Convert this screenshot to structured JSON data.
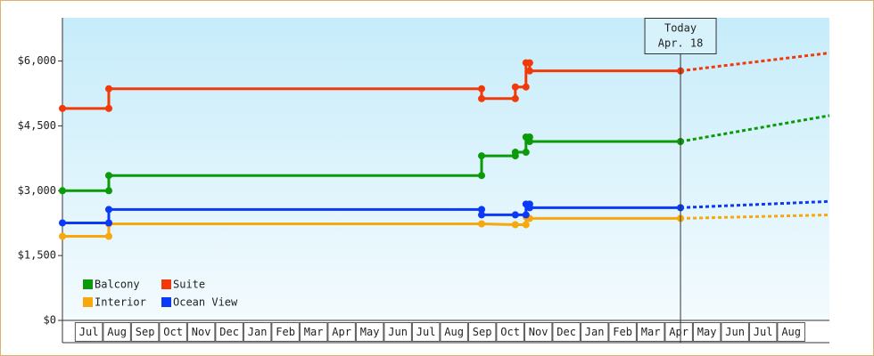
{
  "chart_data": {
    "type": "line",
    "step": true,
    "categories": [
      "Jul",
      "Aug",
      "Sep",
      "Oct",
      "Nov",
      "Dec",
      "Jan",
      "Feb",
      "Mar",
      "Apr",
      "May",
      "Jun",
      "Jul",
      "Aug",
      "Sep",
      "Oct",
      "Nov",
      "Dec",
      "Jan",
      "Feb",
      "Mar",
      "Apr",
      "May",
      "Jun",
      "Jul",
      "Aug"
    ],
    "xlim": [
      -0.44,
      26.86
    ],
    "ylim": [
      0,
      7000
    ],
    "yticks": [
      {
        "value": 0,
        "label": "$0"
      },
      {
        "value": 1500,
        "label": "$1,500"
      },
      {
        "value": 3000,
        "label": "$3,000"
      },
      {
        "value": 4500,
        "label": "$4,500"
      },
      {
        "value": 6000,
        "label": "$6,000"
      }
    ],
    "legend": "bottom-left",
    "annotation": {
      "x": 21.56,
      "label": [
        "Today",
        "Apr. 18"
      ]
    },
    "series": [
      {
        "name": "Balcony",
        "color": "#0a9a0a",
        "x": [
          -0.44,
          1.21,
          1.21,
          14.48,
          14.48,
          15.68,
          15.68,
          16.06,
          16.06,
          16.19,
          16.19,
          21.56
        ],
        "values": [
          3000,
          3000,
          3352,
          3352,
          3807,
          3807,
          3890,
          3890,
          4241,
          4241,
          4138,
          4138
        ],
        "forecast": {
          "x": [
            21.56,
            26.86
          ],
          "values": [
            4138,
            4738
          ]
        }
      },
      {
        "name": "Suite",
        "color": "#f03a0a",
        "x": [
          -0.44,
          1.21,
          1.21,
          14.48,
          14.48,
          15.68,
          15.68,
          16.06,
          16.06,
          16.19,
          16.19,
          21.56
        ],
        "values": [
          4903,
          4903,
          5359,
          5359,
          5131,
          5131,
          5400,
          5400,
          5959,
          5959,
          5772,
          5772
        ],
        "forecast": {
          "x": [
            21.56,
            26.86
          ],
          "values": [
            5772,
            6186
          ]
        }
      },
      {
        "name": "Interior",
        "color": "#f7a80a",
        "x": [
          -0.44,
          1.21,
          1.21,
          14.48,
          15.68,
          16.06,
          16.06,
          16.19,
          21.56
        ],
        "values": [
          1945,
          1945,
          2234,
          2234,
          2214,
          2214,
          2400,
          2359,
          2359
        ],
        "forecast": {
          "x": [
            21.56,
            26.86
          ],
          "values": [
            2359,
            2441
          ]
        }
      },
      {
        "name": "Ocean View",
        "color": "#0a3af5",
        "x": [
          -0.44,
          1.21,
          1.21,
          14.48,
          14.48,
          15.68,
          16.06,
          16.06,
          16.19,
          16.19,
          21.56
        ],
        "values": [
          2255,
          2255,
          2566,
          2566,
          2441,
          2441,
          2441,
          2690,
          2690,
          2607,
          2607
        ],
        "forecast": {
          "x": [
            21.56,
            26.86
          ],
          "values": [
            2607,
            2752
          ]
        }
      }
    ]
  }
}
